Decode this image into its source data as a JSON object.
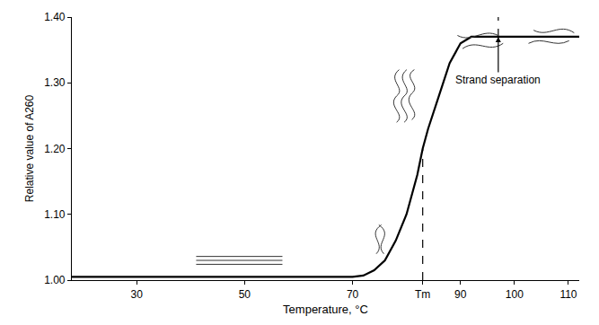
{
  "chart_data": {
    "type": "line",
    "x_label": "Temperature, °C",
    "y_label": "Relative value of A260",
    "x": [
      18,
      30,
      40,
      50,
      60,
      70,
      72,
      74,
      76,
      78,
      80,
      82,
      83,
      84,
      86,
      88,
      90,
      92,
      95,
      100,
      105,
      110,
      112
    ],
    "values": [
      1.005,
      1.005,
      1.005,
      1.005,
      1.005,
      1.005,
      1.007,
      1.015,
      1.03,
      1.06,
      1.1,
      1.16,
      1.2,
      1.23,
      1.28,
      1.33,
      1.36,
      1.37,
      1.37,
      1.37,
      1.37,
      1.37,
      1.37
    ],
    "color": "#000000",
    "line_style": "solid",
    "xlim": [
      18,
      112
    ],
    "ylim": [
      1.0,
      1.4
    ],
    "xticks": [
      30,
      50,
      70,
      {
        "value": 83,
        "label": "Tm"
      },
      90,
      100,
      110
    ],
    "yticks": [
      {
        "value": 1.0,
        "label": "1.00"
      },
      {
        "value": 1.1,
        "label": "1.10"
      },
      {
        "value": 1.2,
        "label": "1.20"
      },
      {
        "value": 1.3,
        "label": "1.30"
      },
      {
        "value": 1.4,
        "label": "1.40"
      }
    ],
    "grid": false,
    "reference_lines": [
      {
        "x": 83,
        "y": [
          1.0,
          1.2
        ]
      },
      {
        "x": 97,
        "y": [
          1.37,
          1.4
        ]
      }
    ],
    "annotations": [
      {
        "text": "Strand separation",
        "x": 97,
        "y": 1.37
      }
    ]
  }
}
